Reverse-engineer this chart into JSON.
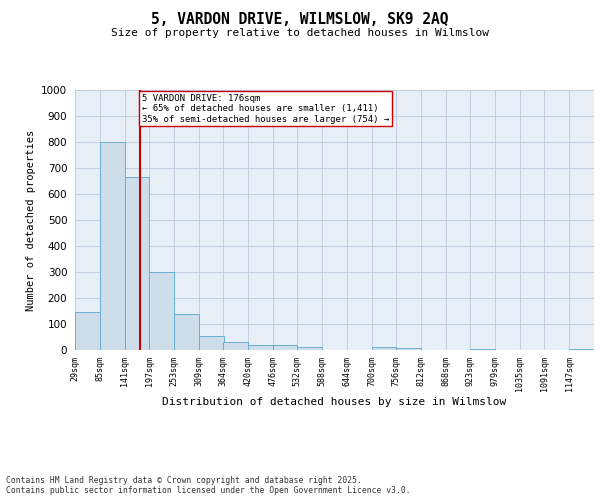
{
  "title": "5, VARDON DRIVE, WILMSLOW, SK9 2AQ",
  "subtitle": "Size of property relative to detached houses in Wilmslow",
  "xlabel": "Distribution of detached houses by size in Wilmslow",
  "ylabel": "Number of detached properties",
  "bin_edges": [
    29,
    85,
    141,
    197,
    253,
    309,
    364,
    420,
    476,
    532,
    588,
    644,
    700,
    756,
    812,
    868,
    923,
    979,
    1035,
    1091,
    1147,
    1203
  ],
  "bar_heights": [
    145,
    800,
    665,
    300,
    140,
    52,
    30,
    20,
    20,
    12,
    0,
    0,
    10,
    8,
    0,
    0,
    3,
    0,
    0,
    0,
    2
  ],
  "bar_color": "#cddde9",
  "bar_edgecolor": "#6aafd4",
  "property_line_x": 176,
  "property_line_color": "#cc0000",
  "annotation_text": "5 VARDON DRIVE: 176sqm\n← 65% of detached houses are smaller (1,411)\n35% of semi-detached houses are larger (754) →",
  "annotation_box_edgecolor": "#cc0000",
  "annotation_box_facecolor": "#ffffff",
  "ylim": [
    0,
    1000
  ],
  "yticks": [
    0,
    100,
    200,
    300,
    400,
    500,
    600,
    700,
    800,
    900,
    1000
  ],
  "grid_color": "#c0cfe0",
  "background_color": "#e8eef5",
  "footer_line1": "Contains HM Land Registry data © Crown copyright and database right 2025.",
  "footer_line2": "Contains public sector information licensed under the Open Government Licence v3.0.",
  "tick_labels": [
    "29sqm",
    "85sqm",
    "141sqm",
    "197sqm",
    "253sqm",
    "309sqm",
    "364sqm",
    "420sqm",
    "476sqm",
    "532sqm",
    "588sqm",
    "644sqm",
    "700sqm",
    "756sqm",
    "812sqm",
    "868sqm",
    "923sqm",
    "979sqm",
    "1035sqm",
    "1091sqm",
    "1147sqm"
  ]
}
